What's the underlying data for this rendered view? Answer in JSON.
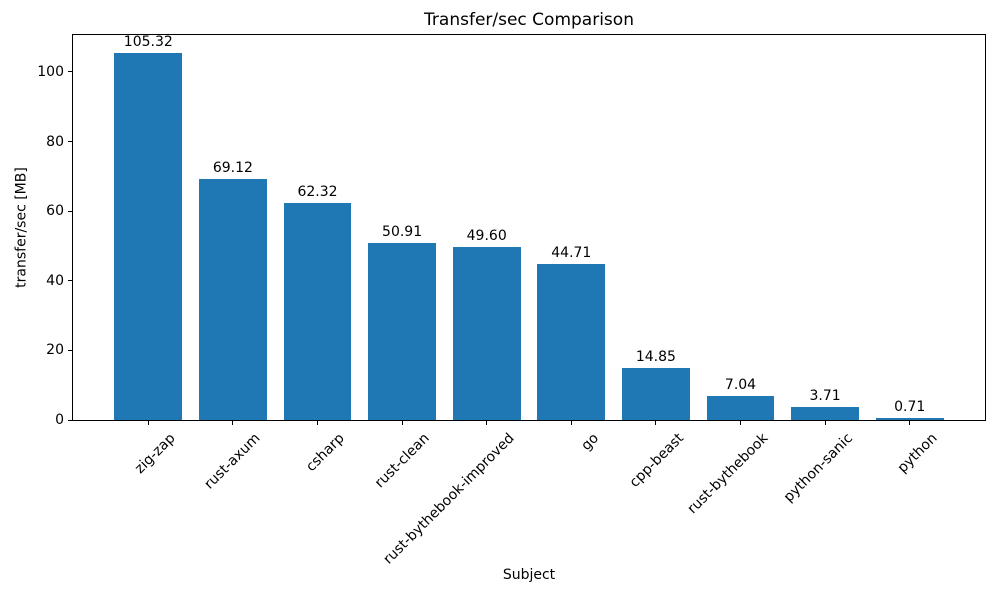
{
  "chart_data": {
    "type": "bar",
    "title": "Transfer/sec Comparison",
    "xlabel": "Subject",
    "ylabel": "transfer/sec [MB]",
    "categories": [
      "zig-zap",
      "rust-axum",
      "csharp",
      "rust-clean",
      "rust-bythebook-improved",
      "go",
      "cpp-beast",
      "rust-bythebook",
      "python-sanic",
      "python"
    ],
    "values": [
      105.32,
      69.12,
      62.32,
      50.91,
      49.6,
      44.71,
      14.85,
      7.04,
      3.71,
      0.71
    ],
    "value_labels": [
      "105.32",
      "69.12",
      "62.32",
      "50.91",
      "49.60",
      "44.71",
      "14.85",
      "7.04",
      "3.71",
      "0.71"
    ],
    "yticks": [
      0,
      20,
      40,
      60,
      80,
      100
    ],
    "ylim": [
      0,
      110.6
    ],
    "bar_color": "#1f77b4",
    "axis_color": "#000000",
    "text_color": "#000000",
    "background_color": "#ffffff",
    "grid": false,
    "legend": "none",
    "x_tick_rotation_deg": 45
  }
}
